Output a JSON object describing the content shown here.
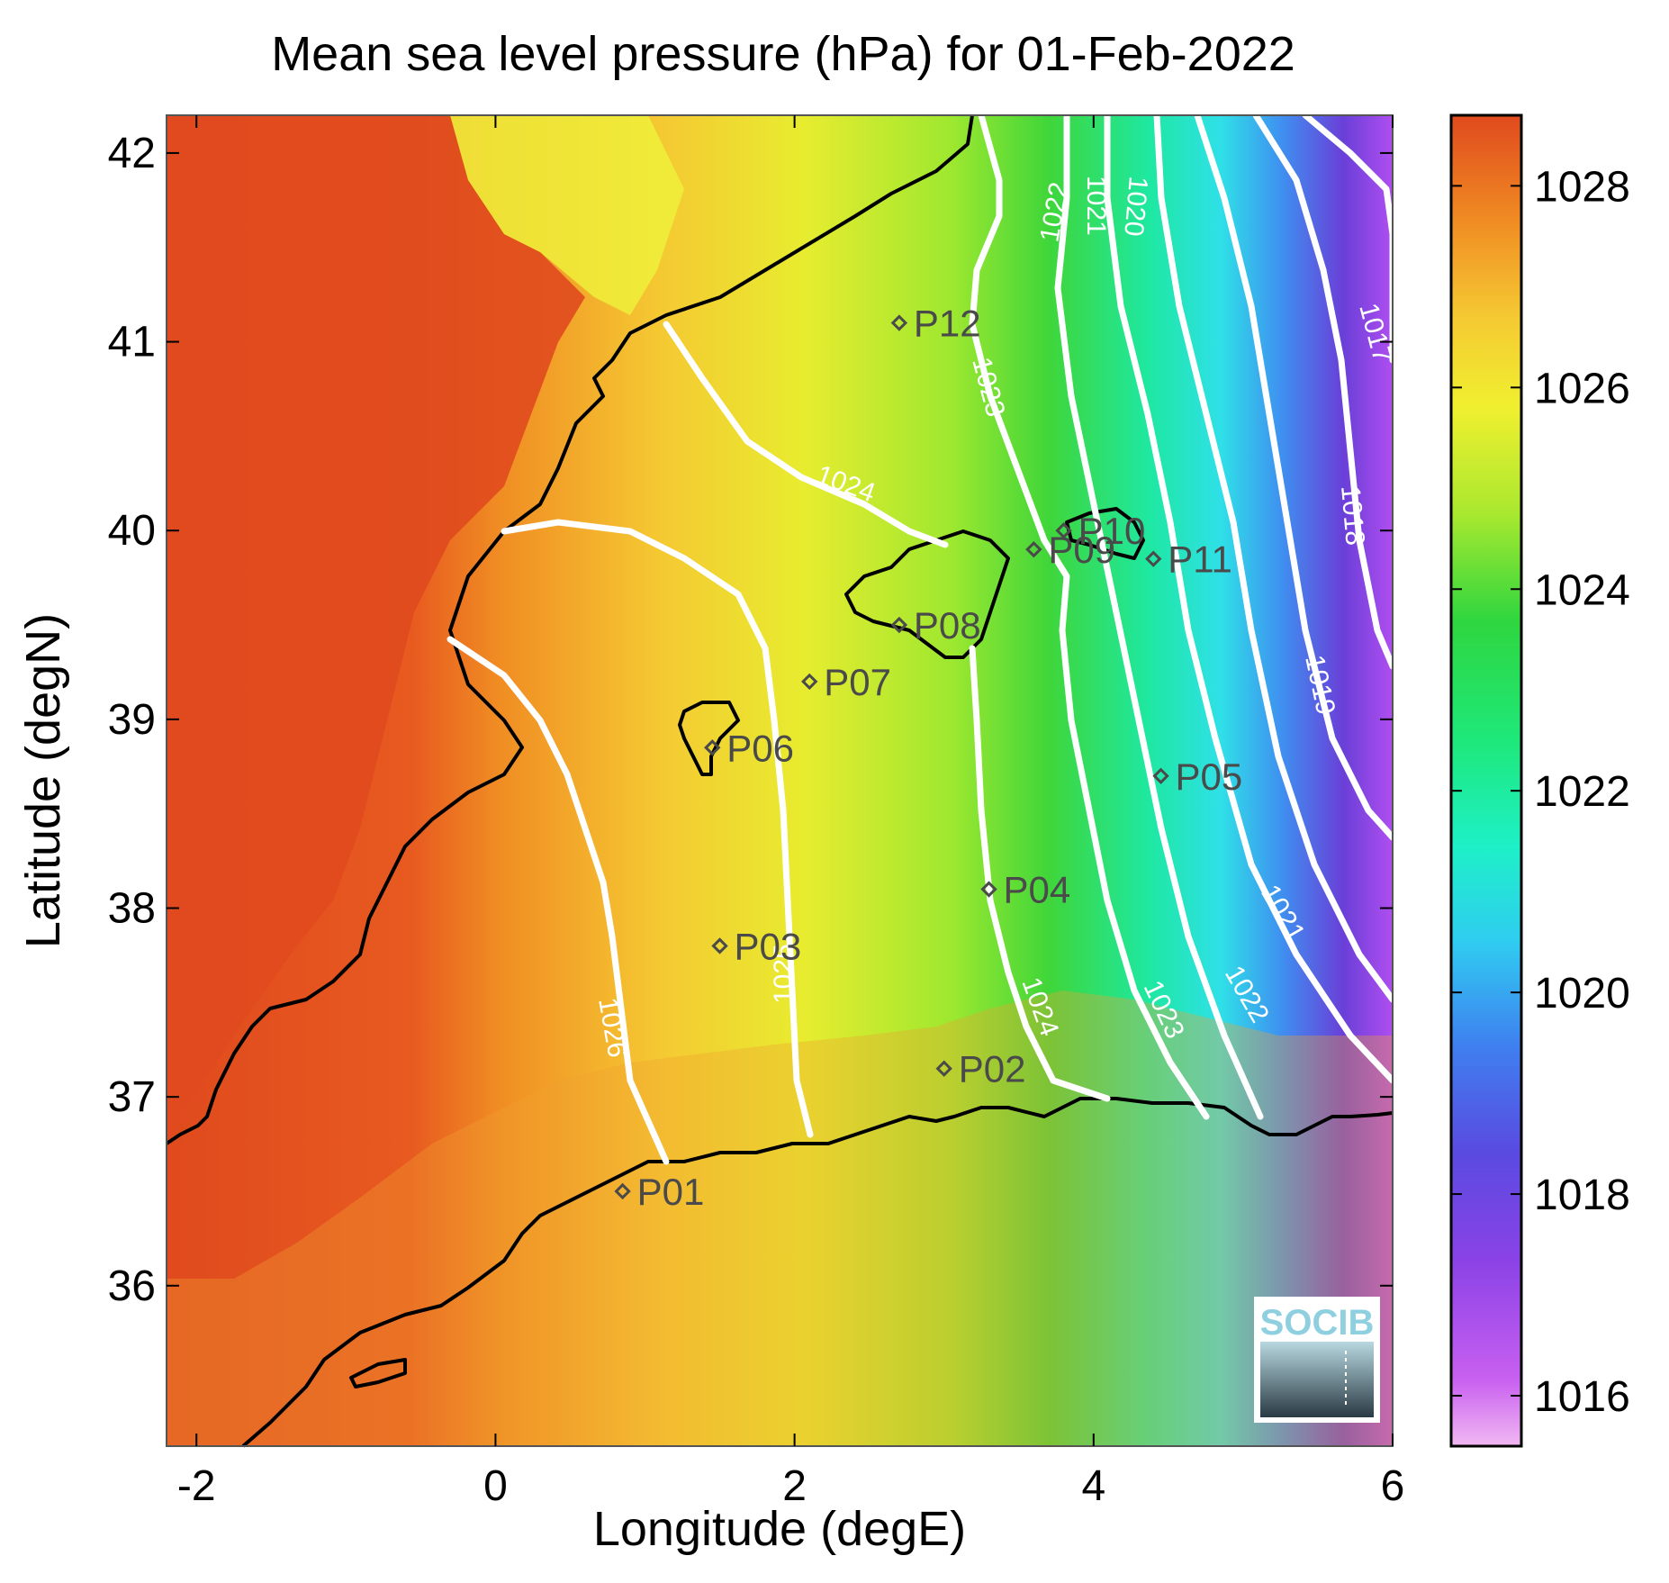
{
  "title": "Mean sea level pressure (hPa) for 01-Feb-2022",
  "axes": {
    "xlabel": "Longitude (degE)",
    "ylabel": "Latitude (degN)",
    "xticks": [
      "-2",
      "0",
      "2",
      "4",
      "6"
    ],
    "yticks": [
      "42",
      "41",
      "40",
      "39",
      "38",
      "37",
      "36"
    ]
  },
  "colorbar": {
    "ticks": [
      "1028",
      "1026",
      "1024",
      "1022",
      "1020",
      "1018",
      "1016"
    ],
    "range_hpa": [
      1015.5,
      1028.7
    ],
    "colors": [
      "#f2b8f2",
      "#b84ef0",
      "#6a3fd8",
      "#3f7ff0",
      "#2fd6f0",
      "#1ef0b8",
      "#2fd63f",
      "#a8e82f",
      "#f0f02f",
      "#f5c832",
      "#f08c23",
      "#e04a1e"
    ]
  },
  "contours": [
    {
      "value": "1017",
      "label": "1017"
    },
    {
      "value": "1018",
      "label": "1018"
    },
    {
      "value": "1019",
      "label": "1019"
    },
    {
      "value": "1020",
      "label": "1020"
    },
    {
      "value": "1021",
      "label": "1021"
    },
    {
      "value": "1022",
      "label": "1022"
    },
    {
      "value": "1023",
      "label": "1023"
    },
    {
      "value": "1024",
      "label": "1024"
    },
    {
      "value": "1025",
      "label": "1025"
    },
    {
      "value": "1026",
      "label": "1026"
    }
  ],
  "stations": [
    {
      "id": "P01",
      "lon": 0.85,
      "lat": 36.5
    },
    {
      "id": "P02",
      "lon": 3.0,
      "lat": 37.15
    },
    {
      "id": "P03",
      "lon": 1.5,
      "lat": 37.8
    },
    {
      "id": "P04",
      "lon": 3.3,
      "lat": 38.1
    },
    {
      "id": "P05",
      "lon": 4.45,
      "lat": 38.7
    },
    {
      "id": "P06",
      "lon": 1.45,
      "lat": 38.85
    },
    {
      "id": "P07",
      "lon": 2.1,
      "lat": 39.2
    },
    {
      "id": "P08",
      "lon": 2.7,
      "lat": 39.5
    },
    {
      "id": "P09",
      "lon": 3.6,
      "lat": 39.9
    },
    {
      "id": "P10",
      "lon": 3.8,
      "lat": 40.0
    },
    {
      "id": "P11",
      "lon": 4.4,
      "lat": 39.85
    },
    {
      "id": "P12",
      "lon": 2.7,
      "lat": 41.1
    }
  ],
  "logo": {
    "text": "SOCIB"
  },
  "colors": {
    "land_high": "#e04a1e",
    "coast": "#000000",
    "contour": "#ffffff",
    "station": "#4a4a4a"
  }
}
